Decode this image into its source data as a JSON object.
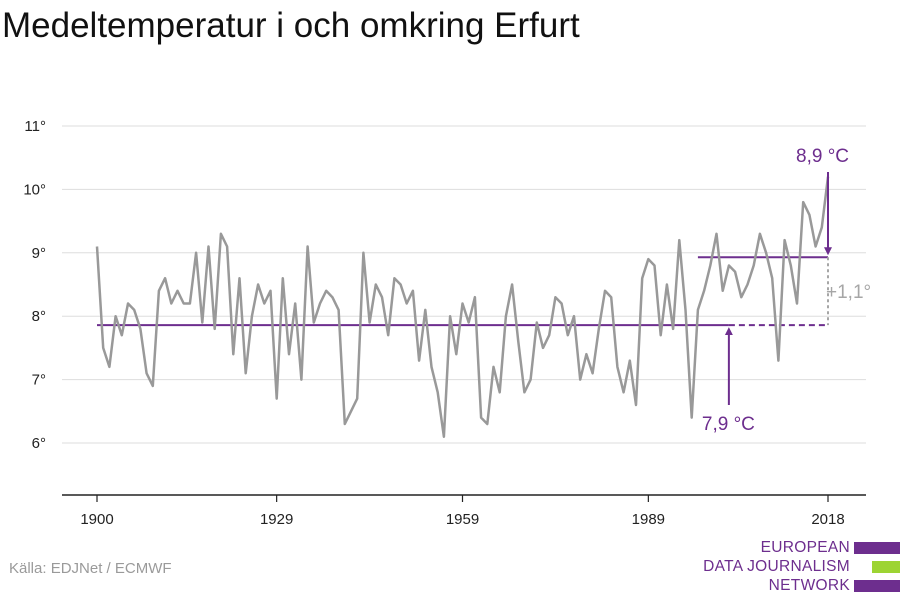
{
  "title": "Medeltemperatur i och omkring Erfurt",
  "source": "Källa: EDJNet / ECMWF",
  "logo": {
    "lines": [
      "EUROPEAN",
      "DATA JOURNALISM",
      "NETWORK"
    ],
    "colors": [
      "#6d2e8e",
      "#9dd433",
      "#6d2e8e"
    ]
  },
  "colors": {
    "series": "#999999",
    "accent": "#6d2e8e",
    "delta": "#a6a6a6",
    "grid": "#dddddd"
  },
  "chart_data": {
    "type": "line",
    "title": "Medeltemperatur i och omkring Erfurt",
    "xlabel": "",
    "ylabel": "",
    "xlim": [
      1900,
      2018
    ],
    "ylim": [
      5,
      11
    ],
    "xticks": [
      "1900",
      "1929",
      "1959",
      "1989",
      "2018"
    ],
    "yticks": [
      "6°",
      "7°",
      "8°",
      "9°",
      "10°",
      "11°"
    ],
    "grid": "horizontal",
    "series": [
      {
        "x": [
          1900,
          1901,
          1902,
          1903,
          1904,
          1905,
          1906,
          1907,
          1908,
          1909,
          1910,
          1911,
          1912,
          1913,
          1914,
          1915,
          1916,
          1917,
          1918,
          1919,
          1920,
          1921,
          1922,
          1923,
          1924,
          1925,
          1926,
          1927,
          1928,
          1929,
          1930,
          1931,
          1932,
          1933,
          1934,
          1935,
          1936,
          1937,
          1938,
          1939,
          1940,
          1941,
          1942,
          1943,
          1944,
          1945,
          1946,
          1947,
          1948,
          1949,
          1950,
          1951,
          1952,
          1953,
          1954,
          1955,
          1956,
          1957,
          1958,
          1959,
          1960,
          1961,
          1962,
          1963,
          1964,
          1965,
          1966,
          1967,
          1968,
          1969,
          1970,
          1971,
          1972,
          1973,
          1974,
          1975,
          1976,
          1977,
          1978,
          1979,
          1980,
          1981,
          1982,
          1983,
          1984,
          1985,
          1986,
          1987,
          1988,
          1989,
          1990,
          1991,
          1992,
          1993,
          1994,
          1995,
          1996,
          1997,
          1998,
          1999,
          2000,
          2001,
          2002,
          2003,
          2004,
          2005,
          2006,
          2007,
          2008,
          2009,
          2010,
          2011,
          2012,
          2013,
          2014,
          2015,
          2016,
          2017,
          2018
        ],
        "values": [
          9.1,
          7.5,
          7.2,
          8.0,
          7.7,
          8.2,
          8.1,
          7.8,
          7.1,
          6.9,
          8.4,
          8.6,
          8.2,
          8.4,
          8.2,
          8.2,
          9.0,
          7.9,
          9.1,
          7.8,
          9.3,
          9.1,
          7.4,
          8.6,
          7.1,
          8.0,
          8.5,
          8.2,
          8.4,
          6.7,
          8.6,
          7.4,
          8.2,
          7.0,
          9.1,
          7.9,
          8.2,
          8.4,
          8.3,
          8.1,
          6.3,
          6.5,
          6.7,
          9.0,
          7.9,
          8.5,
          8.3,
          7.7,
          8.6,
          8.5,
          8.2,
          8.4,
          7.3,
          8.1,
          7.2,
          6.8,
          6.1,
          8.0,
          7.4,
          8.2,
          7.9,
          8.3,
          6.4,
          6.3,
          7.2,
          6.8,
          8.0,
          8.5,
          7.6,
          6.8,
          7.0,
          7.9,
          7.5,
          7.7,
          8.3,
          8.2,
          7.7,
          8.0,
          7.0,
          7.4,
          7.1,
          7.8,
          8.4,
          8.3,
          7.2,
          6.8,
          7.3,
          6.6,
          8.6,
          8.9,
          8.8,
          7.7,
          8.5,
          7.8,
          9.2,
          8.1,
          6.4,
          8.1,
          8.4,
          8.8,
          9.3,
          8.4,
          8.8,
          8.7,
          8.3,
          8.5,
          8.8,
          9.3,
          9.0,
          8.6,
          7.3,
          9.2,
          8.8,
          8.2,
          9.8,
          9.6,
          9.1,
          9.4,
          10.2
        ]
      }
    ],
    "reference_lines": [
      {
        "label": "7,9 °C",
        "value": 7.86,
        "x": [
          1900,
          2018
        ]
      },
      {
        "label": "8,9 °C",
        "value": 8.93,
        "x": [
          1997,
          2018
        ]
      }
    ],
    "delta_label": "+1,1°"
  }
}
